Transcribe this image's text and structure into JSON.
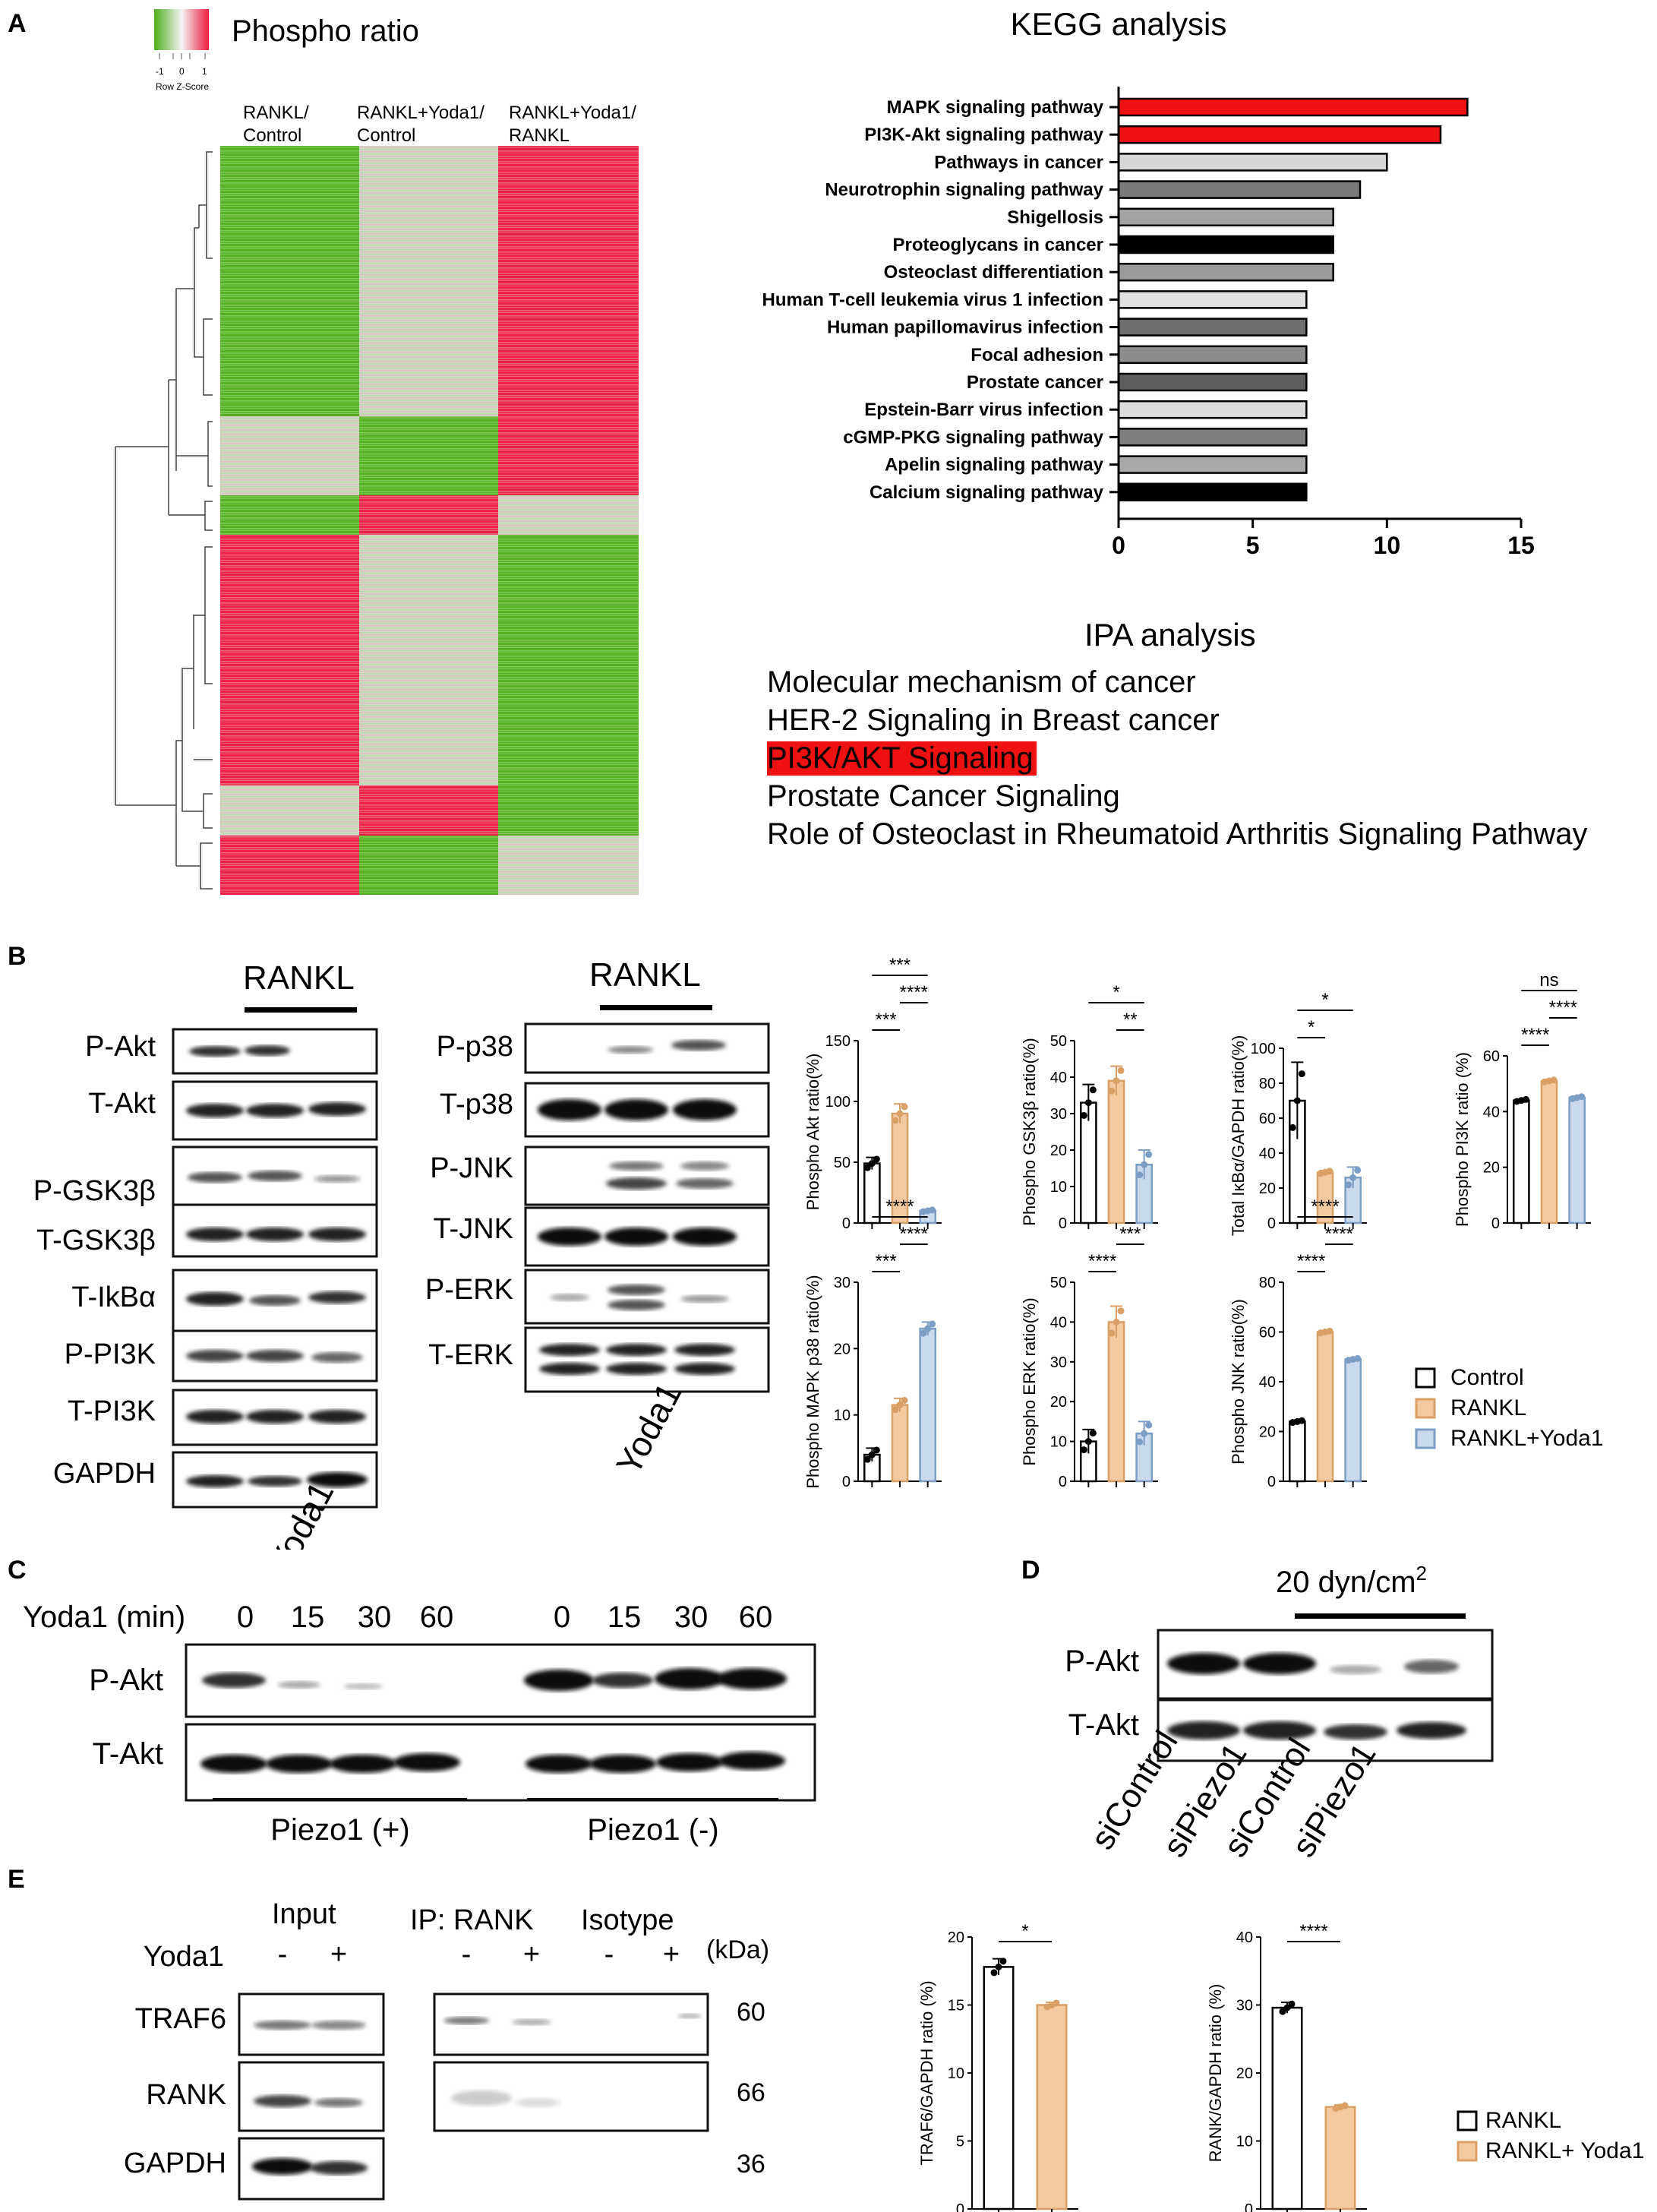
{
  "panels": {
    "A": "A",
    "B": "B",
    "C": "C",
    "D": "D",
    "E": "E"
  },
  "heatmap": {
    "title": "Phospho ratio",
    "legend_ticks": [
      "-1",
      "0",
      "1"
    ],
    "legend_label": "Row Z-Score",
    "columns": [
      [
        "RANKL/",
        "Control"
      ],
      [
        "RANKL+Yoda1/",
        "Control"
      ],
      [
        "RANKL+Yoda1/",
        "RANKL"
      ]
    ],
    "colors": {
      "up": "#ee1c3c",
      "down": "#4caf1a",
      "mid": "#d8d8d8"
    }
  },
  "kegg": {
    "title": "KEGG analysis",
    "x_ticks": [
      "0",
      "5",
      "10",
      "15"
    ],
    "chart_data": {
      "type": "bar",
      "orientation": "horizontal",
      "categories": [
        "MAPK signaling pathway",
        "PI3K-Akt signaling pathway",
        "Pathways in cancer",
        "Neurotrophin signaling pathway",
        "Shigellosis",
        "Proteoglycans in cancer",
        "Osteoclast differentiation",
        "Human T-cell leukemia virus 1 infection",
        "Human papillomavirus infection",
        "Focal adhesion",
        "Prostate cancer",
        "Epstein-Barr virus infection",
        "cGMP-PKG signaling pathway",
        "Apelin signaling pathway",
        "Calcium signaling pathway"
      ],
      "values": [
        13,
        12,
        10,
        9,
        8,
        8,
        8,
        7,
        7,
        7,
        7,
        7,
        7,
        7,
        7
      ],
      "colors": [
        "#ee1111",
        "#ee1111",
        "#d6d6d6",
        "#7a7a7a",
        "#a3a3a3",
        "#000000",
        "#9a9a9a",
        "#e0e0e0",
        "#6e6e6e",
        "#8c8c8c",
        "#5e5e5e",
        "#dcdcdc",
        "#7e7e7e",
        "#a8a8a8",
        "#000000"
      ],
      "xlim": [
        0,
        15
      ]
    }
  },
  "ipa": {
    "title": "IPA analysis",
    "items": [
      "Molecular mechanism of cancer",
      "HER-2 Signaling in Breast cancer",
      "PI3K/AKT Signaling",
      "Prostate Cancer Signaling",
      "Role of Osteoclast in Rheumatoid Arthritis Signaling Pathway"
    ],
    "highlight_color": "#ee1111"
  },
  "blots_b": {
    "rankl_label": "RANKL",
    "yoda_label": "Yoda1",
    "left_rows": [
      "P-Akt",
      "T-Akt",
      "P-GSK3β",
      "T-GSK3β",
      "T-IkBα",
      "P-PI3K",
      "T-PI3K",
      "GAPDH"
    ],
    "right_rows": [
      "P-p38",
      "T-p38",
      "P-JNK",
      "T-JNK",
      "P-ERK",
      "T-ERK"
    ]
  },
  "bar_charts_b": {
    "chart_data": [
      {
        "type": "bar",
        "ylabel": "Phospho Akt ratio(%)",
        "categories": [
          "Control",
          "RANKL",
          "RANKL+Yoda1"
        ],
        "values": [
          49,
          90,
          10
        ],
        "errors": [
          5,
          8,
          1
        ],
        "ylim": [
          0,
          150
        ],
        "yticks": [
          "0",
          "50",
          "100",
          "150"
        ],
        "sig": [
          "***",
          "****",
          "***"
        ]
      },
      {
        "type": "bar",
        "ylabel": "Phospho GSK3β ratio(%)",
        "categories": [
          "Control",
          "RANKL",
          "RANKL+Yoda1"
        ],
        "values": [
          33,
          39,
          16
        ],
        "errors": [
          5,
          4,
          4
        ],
        "ylim": [
          0,
          50
        ],
        "yticks": [
          "0",
          "10",
          "20",
          "30",
          "40",
          "50"
        ],
        "sig": [
          "*",
          "**"
        ]
      },
      {
        "type": "bar",
        "ylabel": "Total IκBα/GAPDH ratio(%)",
        "categories": [
          "Control",
          "RANKL",
          "RANKL+Yoda1"
        ],
        "values": [
          70,
          29,
          26
        ],
        "errors": [
          22,
          1,
          6
        ],
        "ylim": [
          0,
          100
        ],
        "yticks": [
          "0",
          "20",
          "40",
          "60",
          "80",
          "100"
        ],
        "sig": [
          "*",
          "*"
        ]
      },
      {
        "type": "bar",
        "ylabel": "Phospho PI3K ratio (%)",
        "categories": [
          "Control",
          "RANKL",
          "RANKL+Yoda1"
        ],
        "values": [
          44,
          51,
          45
        ],
        "errors": [
          0.5,
          0.5,
          0.5
        ],
        "ylim": [
          0,
          60
        ],
        "yticks": [
          "0",
          "20",
          "40",
          "60"
        ],
        "sig": [
          "ns",
          "****",
          "****"
        ]
      },
      {
        "type": "bar",
        "ylabel": "Phospho MAPK p38 ratio(%)",
        "categories": [
          "Control",
          "RANKL",
          "RANKL+Yoda1"
        ],
        "values": [
          4,
          11.5,
          23
        ],
        "errors": [
          1,
          1,
          1
        ],
        "ylim": [
          0,
          30
        ],
        "yticks": [
          "0",
          "10",
          "20",
          "30"
        ],
        "sig": [
          "****",
          "****",
          "***"
        ]
      },
      {
        "type": "bar",
        "ylabel": "Phospho ERK ratio(%)",
        "categories": [
          "Control",
          "RANKL",
          "RANKL+Yoda1"
        ],
        "values": [
          10,
          40,
          12
        ],
        "errors": [
          3,
          4,
          3
        ],
        "ylim": [
          0,
          50
        ],
        "yticks": [
          "0",
          "10",
          "20",
          "30",
          "40",
          "50"
        ],
        "sig": [
          "***",
          "****"
        ]
      },
      {
        "type": "bar",
        "ylabel": "Phospho JNK ratio(%)",
        "categories": [
          "Control",
          "RANKL",
          "RANKL+Yoda1"
        ],
        "values": [
          24,
          60,
          49
        ],
        "errors": [
          0.5,
          0.5,
          0.5
        ],
        "ylim": [
          0,
          80
        ],
        "yticks": [
          "0",
          "20",
          "40",
          "60",
          "80"
        ],
        "sig": [
          "****",
          "****",
          "****"
        ]
      }
    ],
    "legend": [
      "Control",
      "RANKL",
      "RANKL+Yoda1"
    ],
    "colors": [
      "#ffffff",
      "#f3c9a0",
      "#c9d9ee"
    ],
    "edge_colors": [
      "#000000",
      "#d9a066",
      "#7d9ec4"
    ]
  },
  "blot_c": {
    "yoda_label": "Yoda1 (min)",
    "times": [
      "0",
      "15",
      "30",
      "60",
      "0",
      "15",
      "30",
      "60"
    ],
    "rows": [
      "P-Akt",
      "T-Akt"
    ],
    "groups": [
      "Piezo1 (+)",
      "Piezo1 (-)"
    ]
  },
  "blot_d": {
    "shear_label": "20 dyn/cm",
    "shear_sup": "2",
    "rows": [
      "P-Akt",
      "T-Akt"
    ],
    "lanes": [
      "siControl",
      "siPiezo1",
      "siControl",
      "siPiezo1"
    ]
  },
  "blot_e": {
    "input_label": "Input",
    "ip_label": "IP: RANK",
    "isotype_label": "Isotype",
    "kda_label": "(kDa)",
    "yoda_label": "Yoda1",
    "signs": [
      "-",
      "+",
      "-",
      "+",
      "-",
      "+"
    ],
    "rows": [
      "TRAF6",
      "RANK",
      "GAPDH"
    ],
    "kda": [
      "60",
      "66",
      "36"
    ]
  },
  "bar_charts_e": {
    "chart_data": [
      {
        "type": "bar",
        "ylabel": "TRAF6/GAPDH ratio (%)",
        "categories": [
          "RANKL",
          "RANKL+ Yoda1"
        ],
        "values": [
          17.8,
          15
        ],
        "errors": [
          0.6,
          0.2
        ],
        "ylim": [
          0,
          20
        ],
        "yticks": [
          "0",
          "5",
          "10",
          "15",
          "20"
        ],
        "sig": [
          "*"
        ]
      },
      {
        "type": "bar",
        "ylabel": "RANK/GAPDH ratio (%)",
        "categories": [
          "RANKL",
          "RANKL+ Yoda1"
        ],
        "values": [
          29.6,
          15
        ],
        "errors": [
          0.8,
          0.3
        ],
        "ylim": [
          0,
          40
        ],
        "yticks": [
          "0",
          "10",
          "20",
          "30",
          "40"
        ],
        "sig": [
          "****"
        ]
      }
    ],
    "legend": [
      "RANKL",
      "RANKL+ Yoda1"
    ],
    "colors": [
      "#ffffff",
      "#f3c9a0"
    ],
    "edge_colors": [
      "#000000",
      "#d9a066"
    ]
  }
}
